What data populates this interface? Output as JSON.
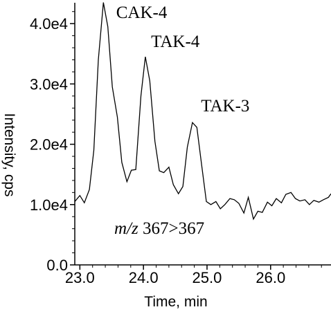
{
  "chart_data": {
    "type": "line",
    "title": "",
    "xlabel": "Time, min",
    "ylabel": "Intensity, cps",
    "xlim": [
      22.92,
      26.95
    ],
    "ylim": [
      0,
      43000
    ],
    "xticks": [
      "23.0",
      "24.0",
      "25.0",
      "26.0"
    ],
    "yticks": [
      "0.0",
      "1.0e4",
      "2.0e4",
      "3.0e4",
      "4.0e4"
    ],
    "grid": false,
    "series": [
      {
        "x": [
          22.92,
          23.0,
          23.07,
          23.15,
          23.22,
          23.29,
          23.37,
          23.44,
          23.51,
          23.59,
          23.66,
          23.74,
          23.81,
          23.88,
          23.96,
          24.03,
          24.1,
          24.18,
          24.25,
          24.32,
          24.4,
          24.47,
          24.55,
          24.62,
          24.69,
          24.77,
          24.84,
          24.91,
          24.99,
          25.06,
          25.14,
          25.21,
          25.28,
          25.36,
          25.43,
          25.5,
          25.58,
          25.65,
          25.73,
          25.8,
          25.87,
          25.95,
          26.02,
          26.09,
          26.17,
          26.24,
          26.32,
          26.39,
          26.46,
          26.54,
          26.61,
          26.68,
          26.76,
          26.83,
          26.91,
          26.95
        ],
        "y": [
          10500,
          11500,
          10300,
          12500,
          19000,
          34000,
          43500,
          39500,
          29500,
          24500,
          17000,
          13800,
          15700,
          15800,
          28000,
          34500,
          30500,
          20500,
          15600,
          15300,
          16200,
          13300,
          11800,
          13000,
          19500,
          23600,
          22800,
          17000,
          10500,
          10000,
          10500,
          9300,
          10000,
          11000,
          10800,
          10200,
          8600,
          11200,
          7600,
          8900,
          8700,
          10400,
          9800,
          11000,
          10300,
          11700,
          12000,
          11000,
          10600,
          10800,
          10000,
          10700,
          10400,
          10800,
          11200,
          11800
        ]
      }
    ],
    "annotations": [
      {
        "text": "CAK-4",
        "x": 23.44,
        "y": 43500
      },
      {
        "text": "TAK-4",
        "x": 24.25,
        "y": 34500
      },
      {
        "text": "TAK-3",
        "x": 25.21,
        "y": 23600
      }
    ],
    "note_text_italic": "m/z",
    "note_text_rest": " 367>367"
  }
}
